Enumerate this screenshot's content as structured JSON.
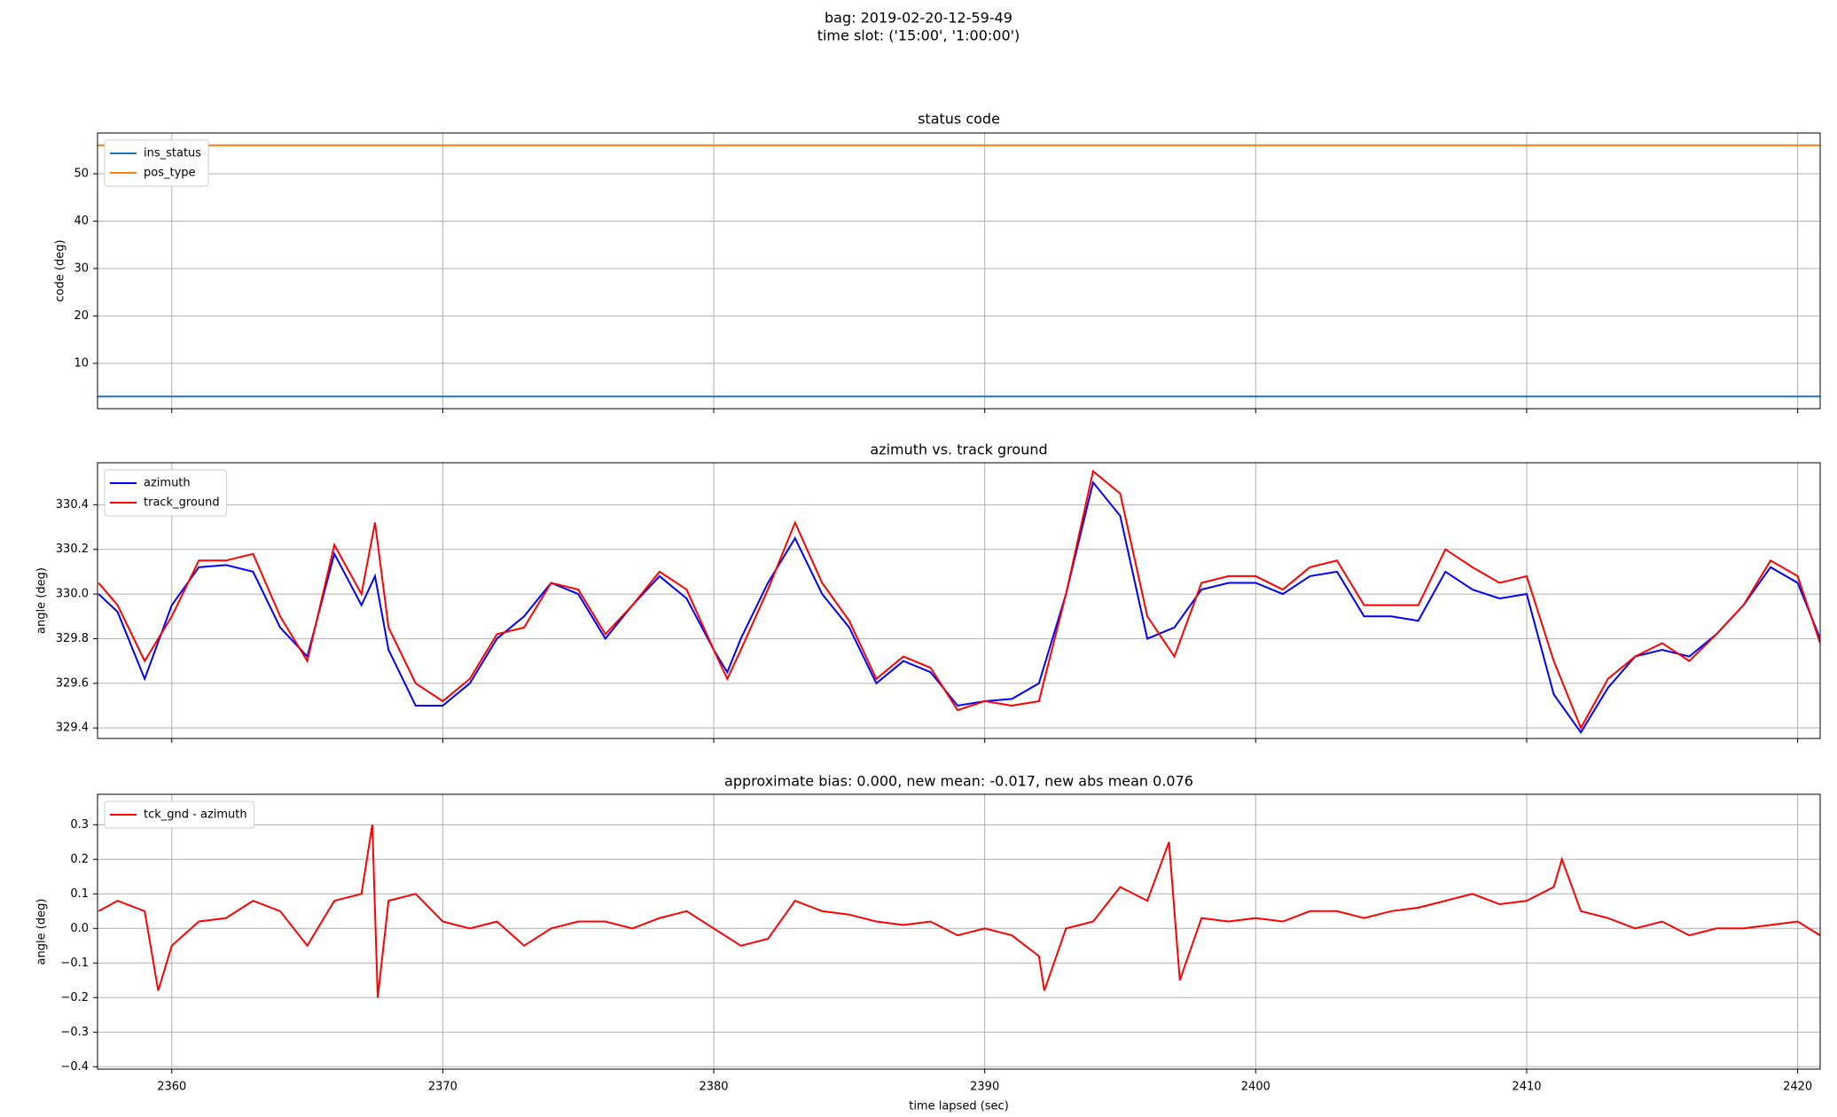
{
  "title_lines": [
    "bag: 2019-02-20-12-59-49",
    "time slot: ('15:00', '1:00:00')"
  ],
  "chart_data": [
    {
      "type": "line",
      "title": "status code",
      "ylabel": "code (deg)",
      "legend": "upper left",
      "grid": true,
      "x": [
        2357.26,
        2420.83
      ],
      "series": [
        {
          "name": "ins_status",
          "color": "#1f77b4",
          "values": [
            3,
            3
          ]
        },
        {
          "name": "pos_type",
          "color": "#ff7f0e",
          "values": [
            56,
            56
          ]
        }
      ],
      "xlim": [
        2357.26,
        2420.83
      ],
      "xticks": [
        2360,
        2370,
        2380,
        2390,
        2400,
        2410,
        2420
      ],
      "ylim": [
        0.43,
        58.6
      ],
      "yticks": [
        10,
        20,
        30,
        40,
        50
      ]
    },
    {
      "type": "line",
      "title": "azimuth vs. track ground",
      "ylabel": "angle (deg)",
      "legend": "upper left",
      "grid": true,
      "x": [
        2357.3,
        2358,
        2359,
        2360,
        2361,
        2362,
        2363,
        2364,
        2365,
        2366,
        2367,
        2367.5,
        2368,
        2369,
        2370,
        2371,
        2372,
        2373,
        2374,
        2375,
        2376,
        2377,
        2378,
        2379,
        2380,
        2380.5,
        2381,
        2382,
        2383,
        2384,
        2385,
        2386,
        2387,
        2388,
        2389,
        2390,
        2391,
        2392,
        2393,
        2394,
        2395,
        2396,
        2397,
        2398,
        2399,
        2400,
        2401,
        2402,
        2403,
        2404,
        2405,
        2406,
        2407,
        2408,
        2409,
        2410,
        2411,
        2412,
        2413,
        2414,
        2415,
        2416,
        2417,
        2418,
        2419,
        2420,
        2420.83
      ],
      "series": [
        {
          "name": "azimuth",
          "color": "#0000ff",
          "values": [
            330.0,
            329.92,
            329.62,
            329.95,
            330.12,
            330.13,
            330.1,
            329.85,
            329.72,
            330.18,
            329.95,
            330.08,
            329.75,
            329.5,
            329.5,
            329.6,
            329.8,
            329.9,
            330.05,
            330.0,
            329.8,
            329.95,
            330.08,
            329.98,
            329.75,
            329.65,
            329.8,
            330.05,
            330.25,
            330.0,
            329.85,
            329.6,
            329.7,
            329.65,
            329.5,
            329.52,
            329.53,
            329.6,
            330.0,
            330.5,
            330.35,
            329.8,
            329.85,
            330.02,
            330.05,
            330.05,
            330.0,
            330.08,
            330.1,
            329.9,
            329.9,
            329.88,
            330.1,
            330.02,
            329.98,
            330.0,
            329.55,
            329.38,
            329.58,
            329.72,
            329.75,
            329.72,
            329.82,
            329.95,
            330.12,
            330.05,
            329.8
          ]
        },
        {
          "name": "track_ground",
          "color": "#ff0000",
          "values": [
            330.05,
            329.95,
            329.7,
            329.9,
            330.15,
            330.15,
            330.18,
            329.9,
            329.7,
            330.22,
            330.0,
            330.32,
            329.85,
            329.6,
            329.52,
            329.62,
            329.82,
            329.85,
            330.05,
            330.02,
            329.82,
            329.95,
            330.1,
            330.02,
            329.75,
            329.62,
            329.75,
            330.02,
            330.32,
            330.05,
            329.88,
            329.62,
            329.72,
            329.67,
            329.48,
            329.52,
            329.5,
            329.52,
            330.0,
            330.55,
            330.45,
            329.9,
            329.72,
            330.05,
            330.08,
            330.08,
            330.02,
            330.12,
            330.15,
            329.95,
            329.95,
            329.95,
            330.2,
            330.12,
            330.05,
            330.08,
            329.7,
            329.4,
            329.62,
            329.72,
            329.78,
            329.7,
            329.82,
            329.95,
            330.15,
            330.08,
            329.78
          ]
        }
      ],
      "xlim": [
        2357.26,
        2420.83
      ],
      "xticks": [
        2360,
        2370,
        2380,
        2390,
        2400,
        2410,
        2420
      ],
      "ylim": [
        329.353,
        330.588
      ],
      "yticks": [
        329.4,
        329.6,
        329.8,
        {
          "value": 330,
          "label": "330.0"
        },
        330.2,
        330.4
      ]
    },
    {
      "type": "line",
      "title": "approximate bias: 0.000, new mean: -0.017, new abs mean 0.076",
      "ylabel": "angle (deg)",
      "xlabel": "time lapsed (sec)",
      "legend": "upper left",
      "grid": true,
      "x": [
        2357.3,
        2358,
        2359,
        2359.5,
        2360,
        2361,
        2362,
        2363,
        2364,
        2365,
        2366,
        2367,
        2367.4,
        2367.6,
        2368,
        2369,
        2370,
        2371,
        2372,
        2373,
        2374,
        2375,
        2376,
        2377,
        2378,
        2379,
        2380,
        2381,
        2382,
        2383,
        2384,
        2385,
        2386,
        2387,
        2388,
        2389,
        2390,
        2391,
        2392,
        2392.2,
        2393,
        2394,
        2395,
        2396,
        2396.8,
        2397.2,
        2398,
        2399,
        2400,
        2401,
        2402,
        2403,
        2404,
        2405,
        2406,
        2407,
        2408,
        2409,
        2410,
        2411,
        2411.3,
        2412,
        2413,
        2414,
        2415,
        2416,
        2417,
        2418,
        2419,
        2420,
        2420.83
      ],
      "series": [
        {
          "name": "tck_gnd - azimuth",
          "color": "#ff0000",
          "values": [
            0.05,
            0.08,
            0.05,
            -0.18,
            -0.05,
            0.02,
            0.03,
            0.08,
            0.05,
            -0.05,
            0.08,
            0.1,
            0.3,
            -0.2,
            0.08,
            0.1,
            0.02,
            0.0,
            0.02,
            -0.05,
            0.0,
            0.02,
            0.02,
            0.0,
            0.03,
            0.05,
            0.0,
            -0.05,
            -0.03,
            0.08,
            0.05,
            0.04,
            0.02,
            0.01,
            0.02,
            -0.02,
            0.0,
            -0.02,
            -0.08,
            -0.18,
            0.0,
            0.02,
            0.12,
            0.08,
            0.25,
            -0.15,
            0.03,
            0.02,
            0.03,
            0.02,
            0.05,
            0.05,
            0.03,
            0.05,
            0.06,
            0.08,
            0.1,
            0.07,
            0.08,
            0.12,
            0.2,
            0.05,
            0.03,
            0.0,
            0.02,
            -0.02,
            0.0,
            0.0,
            0.01,
            0.02,
            -0.02
          ]
        }
      ],
      "xlim": [
        2357.26,
        2420.83
      ],
      "xticks": [
        2360,
        2370,
        2380,
        2390,
        2400,
        2410,
        2420
      ],
      "ylim": [
        -0.407,
        0.388
      ],
      "yticks": [
        {
          "value": -0.4,
          "label": "−0.4"
        },
        {
          "value": -0.3,
          "label": "−0.3"
        },
        {
          "value": -0.2,
          "label": "−0.2"
        },
        {
          "value": -0.1,
          "label": "−0.1"
        },
        {
          "value": 0,
          "label": "0.0"
        },
        0.1,
        0.2,
        0.3
      ]
    }
  ]
}
